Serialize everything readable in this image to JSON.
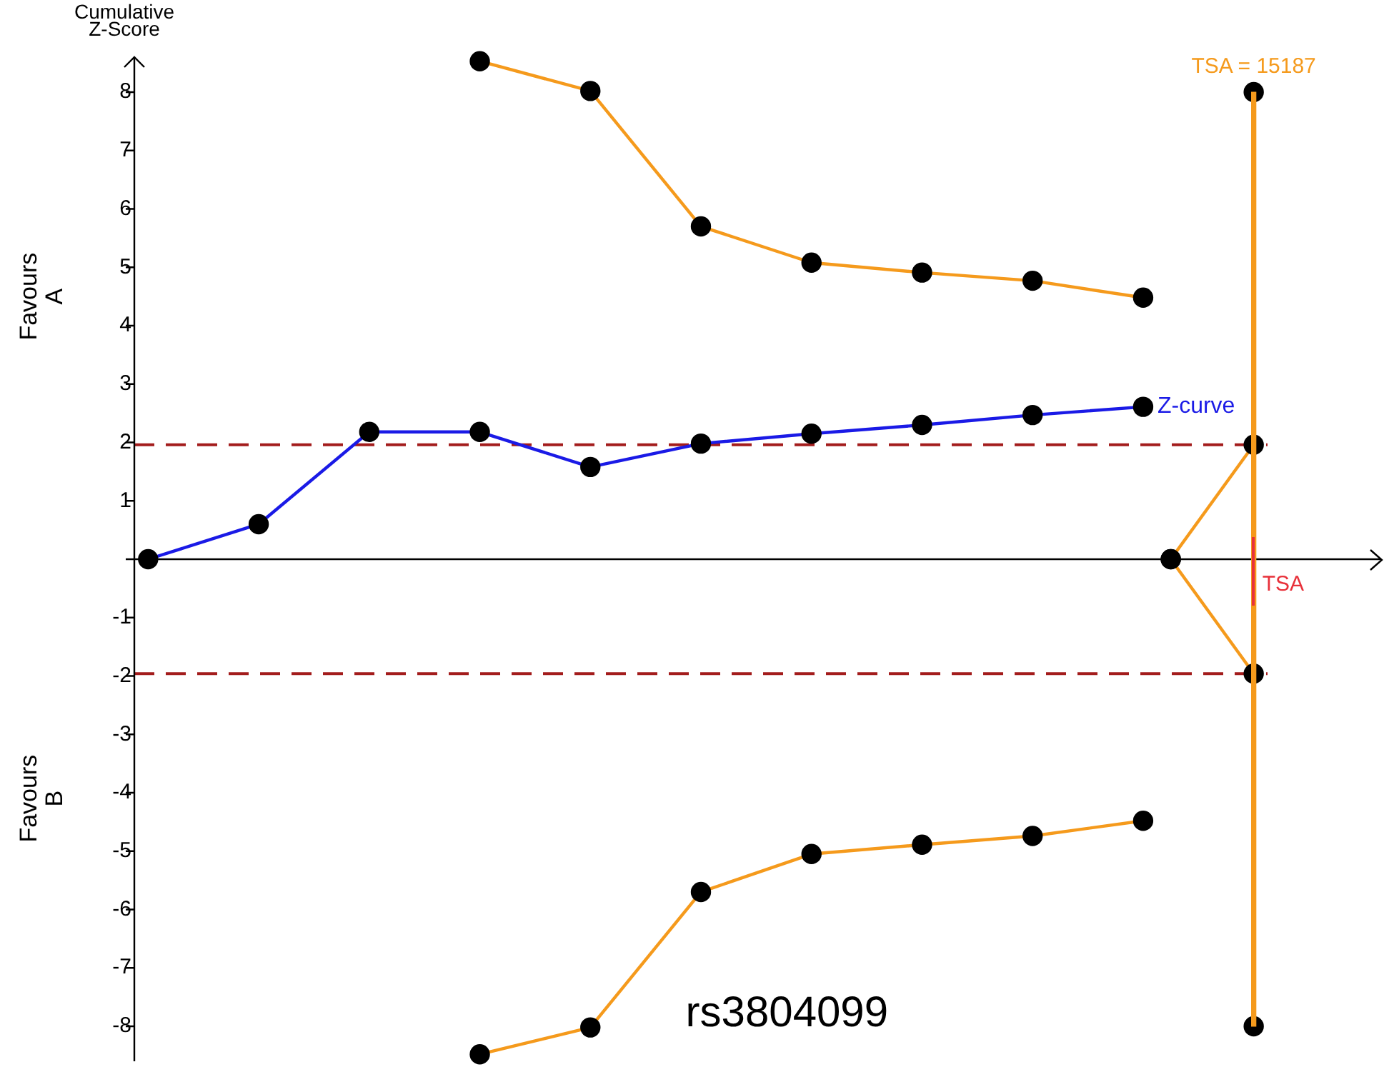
{
  "chart_data": {
    "type": "line",
    "ylabel": "Cumulative Z-Score",
    "categories": [
      null,
      null,
      null,
      null,
      null,
      null,
      null,
      null,
      null,
      null,
      null,
      null,
      null,
      null,
      null,
      null,
      null,
      null,
      null,
      null,
      null,
      null,
      null,
      null,
      null,
      null,
      null,
      null,
      null,
      null,
      null,
      null,
      null,
      null,
      null,
      null,
      null,
      null,
      null,
      null,
      null
    ],
    "ylim": [
      -8.6,
      8.6
    ],
    "yticks": [
      -8,
      -7,
      -6,
      -5,
      -4,
      -3,
      -2,
      -1,
      {
        "value": 0,
        "label": null
      },
      1,
      2,
      3,
      4,
      5,
      6,
      7,
      8
    ],
    "tick_labels": "y",
    "marker": "circle",
    "line_style": "solid",
    "series": [
      {
        "name": "Z-curve",
        "color": "#1a1ae6",
        "values": [
          0,
          null,
          null,
          null,
          0.6,
          null,
          null,
          null,
          2.18,
          null,
          null,
          null,
          2.18,
          null,
          null,
          null,
          1.58,
          null,
          null,
          null,
          1.98,
          null,
          null,
          null,
          2.15,
          null,
          null,
          null,
          2.3,
          null,
          null,
          null,
          2.47,
          null,
          null,
          null,
          2.61,
          null,
          null,
          null,
          null
        ]
      },
      {
        "color": "#f59a1c",
        "values": [
          null,
          null,
          null,
          null,
          null,
          null,
          null,
          null,
          null,
          null,
          null,
          null,
          8.53,
          null,
          null,
          null,
          8.02,
          null,
          null,
          null,
          5.7,
          null,
          null,
          null,
          5.08,
          null,
          null,
          null,
          4.91,
          null,
          null,
          null,
          4.77,
          null,
          null,
          null,
          4.48,
          null,
          null,
          null,
          null
        ]
      },
      {
        "color": "#f59a1c",
        "values": [
          null,
          null,
          null,
          null,
          null,
          null,
          null,
          null,
          null,
          null,
          null,
          null,
          -8.48,
          null,
          null,
          null,
          -8.02,
          null,
          null,
          null,
          -5.7,
          null,
          null,
          null,
          -5.05,
          null,
          null,
          null,
          -4.89,
          null,
          null,
          null,
          -4.74,
          null,
          null,
          null,
          -4.48,
          null,
          null,
          null,
          null
        ]
      },
      {
        "color": "#f59a1c",
        "values": [
          null,
          null,
          null,
          null,
          null,
          null,
          null,
          null,
          null,
          null,
          null,
          null,
          null,
          null,
          null,
          null,
          null,
          null,
          null,
          null,
          null,
          null,
          null,
          null,
          null,
          null,
          null,
          null,
          null,
          null,
          null,
          null,
          null,
          null,
          null,
          null,
          null,
          0,
          null,
          null,
          1.96
        ]
      },
      {
        "color": "#f59a1c",
        "values": [
          null,
          null,
          null,
          null,
          null,
          null,
          null,
          null,
          null,
          null,
          null,
          null,
          null,
          null,
          null,
          null,
          null,
          null,
          null,
          null,
          null,
          null,
          null,
          null,
          null,
          null,
          null,
          null,
          null,
          null,
          null,
          null,
          null,
          null,
          null,
          null,
          null,
          0,
          null,
          null,
          -1.96
        ]
      },
      {
        "type": "bar",
        "color": "#f59a1c",
        "base": [
          null,
          null,
          null,
          null,
          null,
          null,
          null,
          null,
          null,
          null,
          null,
          null,
          null,
          null,
          null,
          null,
          null,
          null,
          null,
          null,
          null,
          null,
          null,
          null,
          null,
          null,
          null,
          null,
          null,
          null,
          null,
          null,
          null,
          null,
          null,
          null,
          null,
          null,
          null,
          null,
          -8
        ],
        "values": [
          null,
          null,
          null,
          null,
          null,
          null,
          null,
          null,
          null,
          null,
          null,
          null,
          null,
          null,
          null,
          null,
          null,
          null,
          null,
          null,
          null,
          null,
          null,
          null,
          null,
          null,
          null,
          null,
          null,
          null,
          null,
          null,
          null,
          null,
          null,
          null,
          null,
          null,
          null,
          null,
          16
        ]
      },
      {
        "type": "scatter",
        "color": "#000000",
        "values": [
          null,
          null,
          null,
          null,
          null,
          null,
          null,
          null,
          null,
          null,
          null,
          null,
          null,
          null,
          null,
          null,
          null,
          null,
          null,
          null,
          null,
          null,
          null,
          null,
          null,
          null,
          null,
          null,
          null,
          null,
          null,
          null,
          null,
          null,
          null,
          null,
          null,
          null,
          null,
          null,
          8
        ]
      },
      {
        "type": "scatter",
        "color": "#000000",
        "values": [
          null,
          null,
          null,
          null,
          null,
          null,
          null,
          null,
          null,
          null,
          null,
          null,
          null,
          null,
          null,
          null,
          null,
          null,
          null,
          null,
          null,
          null,
          null,
          null,
          null,
          null,
          null,
          null,
          null,
          null,
          null,
          null,
          null,
          null,
          null,
          null,
          null,
          null,
          null,
          null,
          -8
        ]
      }
    ],
    "ref_lines": [
      {
        "axis": "y",
        "value": 1.96,
        "color": "#a31c1c",
        "line_style": "dashed"
      },
      {
        "axis": "y",
        "value": -1.96,
        "color": "#a31c1c",
        "line_style": "dashed"
      }
    ],
    "annotations": [
      "TSA = 15187",
      "TSA",
      "Favours A",
      "Favours B",
      "rs3804099"
    ]
  }
}
